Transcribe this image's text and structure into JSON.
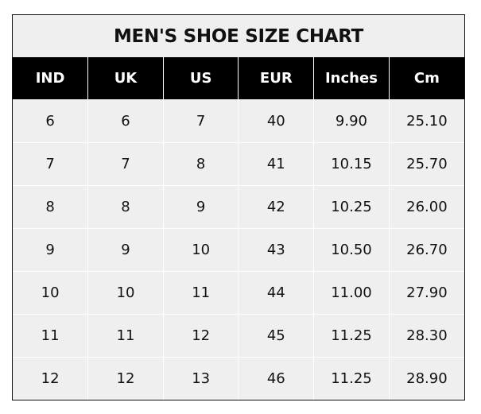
{
  "title": "MEN'S SHOE SIZE CHART",
  "colors": {
    "header_bg": "#000000",
    "header_text": "#ffffff",
    "cell_bg": "#efefef",
    "grid": "#ffffff"
  },
  "headers": [
    "IND",
    "UK",
    "US",
    "EUR",
    "Inches",
    "Cm"
  ],
  "rows": [
    [
      "6",
      "6",
      "7",
      "40",
      "9.90",
      "25.10"
    ],
    [
      "7",
      "7",
      "8",
      "41",
      "10.15",
      "25.70"
    ],
    [
      "8",
      "8",
      "9",
      "42",
      "10.25",
      "26.00"
    ],
    [
      "9",
      "9",
      "10",
      "43",
      "10.50",
      "26.70"
    ],
    [
      "10",
      "10",
      "11",
      "44",
      "11.00",
      "27.90"
    ],
    [
      "11",
      "11",
      "12",
      "45",
      "11.25",
      "28.30"
    ],
    [
      "12",
      "12",
      "13",
      "46",
      "11.25",
      "28.90"
    ]
  ]
}
